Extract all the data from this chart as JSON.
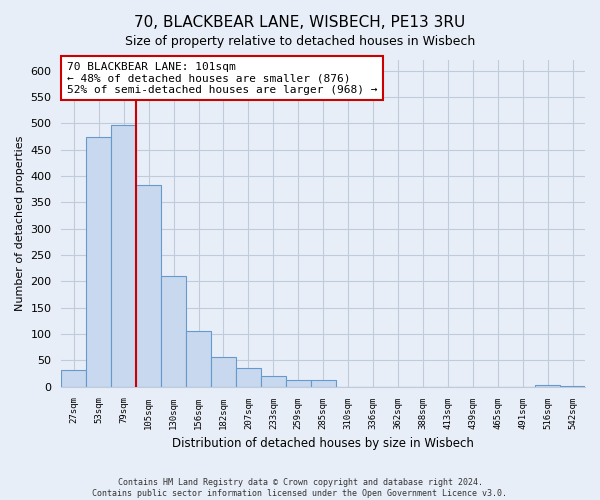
{
  "title": "70, BLACKBEAR LANE, WISBECH, PE13 3RU",
  "subtitle": "Size of property relative to detached houses in Wisbech",
  "xlabel": "Distribution of detached houses by size in Wisbech",
  "ylabel": "Number of detached properties",
  "bar_color": "#c8d8ee",
  "bar_edge_color": "#6699cc",
  "bin_labels": [
    "27sqm",
    "53sqm",
    "79sqm",
    "105sqm",
    "130sqm",
    "156sqm",
    "182sqm",
    "207sqm",
    "233sqm",
    "259sqm",
    "285sqm",
    "310sqm",
    "336sqm",
    "362sqm",
    "388sqm",
    "413sqm",
    "439sqm",
    "465sqm",
    "491sqm",
    "516sqm",
    "542sqm"
  ],
  "bar_heights": [
    32,
    473,
    497,
    383,
    210,
    106,
    57,
    36,
    21,
    12,
    12,
    0,
    0,
    0,
    0,
    0,
    0,
    0,
    0,
    3,
    2
  ],
  "ylim": [
    0,
    620
  ],
  "yticks": [
    0,
    50,
    100,
    150,
    200,
    250,
    300,
    350,
    400,
    450,
    500,
    550,
    600
  ],
  "vline_x": 2.5,
  "vline_color": "#cc0000",
  "annotation_text": "70 BLACKBEAR LANE: 101sqm\n← 48% of detached houses are smaller (876)\n52% of semi-detached houses are larger (968) →",
  "annotation_box_color": "#ffffff",
  "annotation_box_edge_color": "#cc0000",
  "footer_line1": "Contains HM Land Registry data © Crown copyright and database right 2024.",
  "footer_line2": "Contains public sector information licensed under the Open Government Licence v3.0.",
  "background_color": "#e8eef8",
  "plot_background_color": "#e8eef8",
  "grid_color": "#c0ccdc",
  "title_fontsize": 11,
  "subtitle_fontsize": 9
}
